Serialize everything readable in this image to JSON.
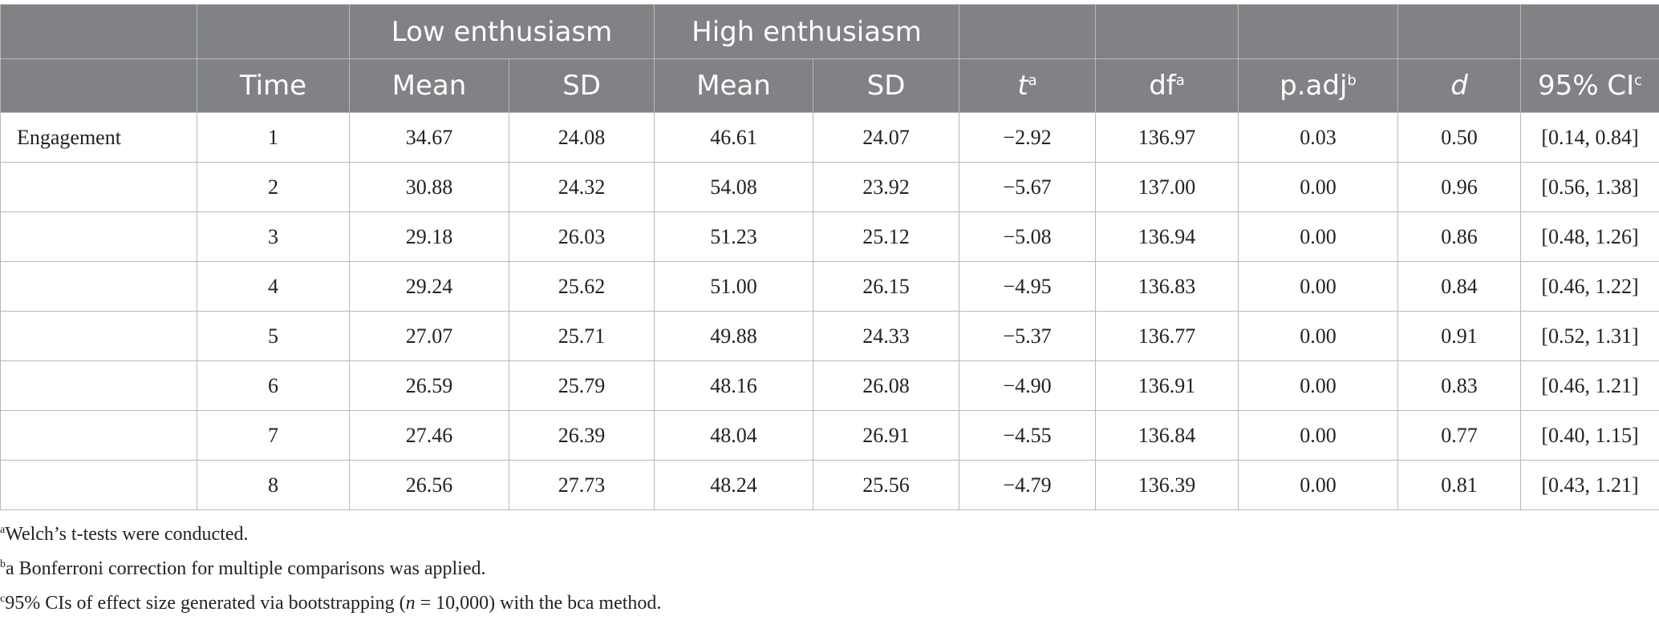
{
  "table": {
    "group_headers": {
      "low": "Low enthusiasm",
      "high": "High enthusiasm"
    },
    "columns": {
      "time": "Time",
      "low_mean": "Mean",
      "low_sd": "SD",
      "high_mean": "Mean",
      "high_sd": "SD",
      "t": "t",
      "t_sup": "a",
      "df": "df",
      "df_sup": "a",
      "padj": "p.adj",
      "padj_sup": "b",
      "d": "d",
      "ci": "95% CI",
      "ci_sup": "c"
    },
    "rows": [
      {
        "label": "Engagement",
        "time": "1",
        "low_mean": "34.67",
        "low_sd": "24.08",
        "high_mean": "46.61",
        "high_sd": "24.07",
        "t": "−2.92",
        "df": "136.97",
        "padj": "0.03",
        "d": "0.50",
        "ci": "[0.14, 0.84]"
      },
      {
        "label": "",
        "time": "2",
        "low_mean": "30.88",
        "low_sd": "24.32",
        "high_mean": "54.08",
        "high_sd": "23.92",
        "t": "−5.67",
        "df": "137.00",
        "padj": "0.00",
        "d": "0.96",
        "ci": "[0.56, 1.38]"
      },
      {
        "label": "",
        "time": "3",
        "low_mean": "29.18",
        "low_sd": "26.03",
        "high_mean": "51.23",
        "high_sd": "25.12",
        "t": "−5.08",
        "df": "136.94",
        "padj": "0.00",
        "d": "0.86",
        "ci": "[0.48, 1.26]"
      },
      {
        "label": "",
        "time": "4",
        "low_mean": "29.24",
        "low_sd": "25.62",
        "high_mean": "51.00",
        "high_sd": "26.15",
        "t": "−4.95",
        "df": "136.83",
        "padj": "0.00",
        "d": "0.84",
        "ci": "[0.46, 1.22]"
      },
      {
        "label": "",
        "time": "5",
        "low_mean": "27.07",
        "low_sd": "25.71",
        "high_mean": "49.88",
        "high_sd": "24.33",
        "t": "−5.37",
        "df": "136.77",
        "padj": "0.00",
        "d": "0.91",
        "ci": "[0.52, 1.31]"
      },
      {
        "label": "",
        "time": "6",
        "low_mean": "26.59",
        "low_sd": "25.79",
        "high_mean": "48.16",
        "high_sd": "26.08",
        "t": "−4.90",
        "df": "136.91",
        "padj": "0.00",
        "d": "0.83",
        "ci": "[0.46, 1.21]"
      },
      {
        "label": "",
        "time": "7",
        "low_mean": "27.46",
        "low_sd": "26.39",
        "high_mean": "48.04",
        "high_sd": "26.91",
        "t": "−4.55",
        "df": "136.84",
        "padj": "0.00",
        "d": "0.77",
        "ci": "[0.40, 1.15]"
      },
      {
        "label": "",
        "time": "8",
        "low_mean": "26.56",
        "low_sd": "27.73",
        "high_mean": "48.24",
        "high_sd": "25.56",
        "t": "−4.79",
        "df": "136.39",
        "padj": "0.00",
        "d": "0.81",
        "ci": "[0.43, 1.21]"
      }
    ]
  },
  "notes": {
    "a": {
      "sup": "a",
      "text": "Welch’s t-tests were conducted."
    },
    "b": {
      "sup": "b",
      "text": "a Bonferroni correction for multiple comparisons was applied."
    },
    "c": {
      "sup": "c",
      "text_before": "95% CIs of effect size generated via bootstrapping (",
      "n": "n",
      "text_after": " = 10,000) with the bca method."
    }
  },
  "colors": {
    "header_bg": "#808285",
    "header_text": "#ffffff",
    "grid": "#b9b9b9"
  }
}
